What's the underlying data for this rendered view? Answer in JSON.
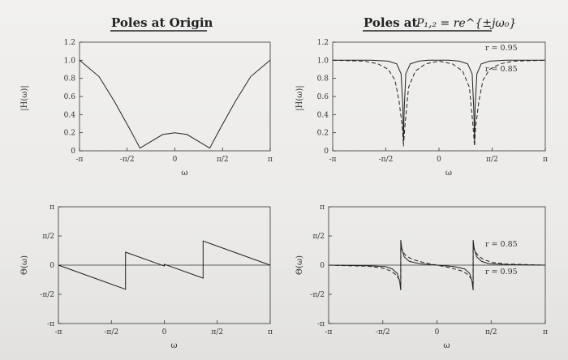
{
  "titles": {
    "left": "Poles at Origin",
    "right_prefix": "Poles at ",
    "right_formula": "P₁,₂ = re^{±jω₀}"
  },
  "chart_data": [
    {
      "type": "line",
      "panel": "magnitude-poles-at-origin",
      "ylabel": "|H(ω)|",
      "xlabel": "ω",
      "xlim": [
        "-π",
        "π"
      ],
      "ylim": [
        0,
        1.2
      ],
      "xticks": [
        "-π",
        "-π/2",
        "0",
        "π/2",
        "π"
      ],
      "yticks": [
        "0",
        "0.2",
        "0.4",
        "0.6",
        "0.8",
        "1.0",
        "1.2"
      ],
      "series": [
        {
          "x": [
            -3.14,
            -2.5,
            -2.0,
            -1.5,
            -1.15,
            -0.8,
            -0.4,
            0,
            0.4,
            0.8,
            1.15,
            1.5,
            2.0,
            2.5,
            3.14
          ],
          "y": [
            1.0,
            0.82,
            0.55,
            0.25,
            0.03,
            0.1,
            0.18,
            0.2,
            0.18,
            0.1,
            0.03,
            0.25,
            0.55,
            0.82,
            1.0
          ]
        }
      ]
    },
    {
      "type": "line",
      "panel": "magnitude-poles-at-re-jw0",
      "ylabel": "|H(ω)|",
      "xlabel": "ω",
      "xlim": [
        "-π",
        "π"
      ],
      "ylim": [
        0,
        1.2
      ],
      "xticks": [
        "-π",
        "-π/2",
        "0",
        "π/2",
        "π"
      ],
      "yticks": [
        "0",
        "0.2",
        "0.4",
        "0.6",
        "0.8",
        "1.0",
        "1.2"
      ],
      "annotations": [
        "r = 0.95",
        "r = 0.85"
      ],
      "series": [
        {
          "dash": false,
          "x": [
            -3.14,
            -2.0,
            -1.5,
            -1.25,
            -1.12,
            -1.07,
            -1.05,
            -1.03,
            -0.98,
            -0.85,
            -0.6,
            -0.3,
            0,
            0.3,
            0.6,
            0.85,
            0.98,
            1.03,
            1.05,
            1.07,
            1.12,
            1.25,
            1.5,
            2.0,
            3.14
          ],
          "y": [
            1.0,
            1.0,
            0.99,
            0.96,
            0.85,
            0.5,
            0.1,
            0.45,
            0.85,
            0.96,
            0.99,
            1.0,
            1.0,
            1.0,
            0.99,
            0.96,
            0.85,
            0.45,
            0.1,
            0.5,
            0.85,
            0.96,
            0.99,
            1.0,
            1.0
          ]
        },
        {
          "dash": true,
          "x": [
            -3.14,
            -2.2,
            -1.8,
            -1.5,
            -1.3,
            -1.18,
            -1.08,
            -1.05,
            -1.0,
            -0.9,
            -0.7,
            -0.4,
            0,
            0.4,
            0.7,
            0.9,
            1.0,
            1.05,
            1.08,
            1.18,
            1.3,
            1.5,
            1.8,
            2.2,
            3.14
          ],
          "y": [
            1.0,
            0.99,
            0.96,
            0.9,
            0.78,
            0.55,
            0.25,
            0.05,
            0.3,
            0.7,
            0.88,
            0.96,
            0.99,
            0.96,
            0.88,
            0.7,
            0.3,
            0.05,
            0.25,
            0.55,
            0.78,
            0.9,
            0.96,
            0.99,
            1.0
          ]
        }
      ]
    },
    {
      "type": "line",
      "panel": "phase-poles-at-origin",
      "ylabel": "Θ(ω)",
      "xlabel": "ω",
      "xlim": [
        "-π",
        "π"
      ],
      "ylim": [
        "-π",
        "π"
      ],
      "xticks": [
        "-π",
        "-π/2",
        "0",
        "π/2",
        "π"
      ],
      "yticks": [
        "-π",
        "-π/2",
        "0",
        "π/2",
        "π"
      ],
      "series": [
        {
          "x": [
            -3.14,
            -1.15,
            -1.15,
            0.0,
            0.0,
            1.15,
            1.15,
            3.14
          ],
          "y": [
            0.0,
            -1.3,
            0.7,
            -0.05,
            0.05,
            -0.7,
            1.3,
            0.0
          ]
        }
      ]
    },
    {
      "type": "line",
      "panel": "phase-poles-at-re-jw0",
      "ylabel": "Θ(ω)",
      "xlabel": "ω",
      "xlim": [
        "-π",
        "π"
      ],
      "ylim": [
        "-π",
        "π"
      ],
      "xticks": [
        "-π",
        "-π/2",
        "0",
        "π/2",
        "π"
      ],
      "yticks": [
        "-π",
        "-π/2",
        "0",
        "π/2",
        "π"
      ],
      "annotations": [
        "r = 0.85",
        "r = 0.95"
      ],
      "series": [
        {
          "dash": false,
          "x": [
            -3.14,
            -2.0,
            -1.5,
            -1.3,
            -1.15,
            -1.08,
            -1.05,
            -1.05,
            -1.02,
            -0.95,
            -0.8,
            -0.5,
            0,
            0.5,
            0.8,
            0.95,
            1.02,
            1.05,
            1.05,
            1.08,
            1.15,
            1.3,
            1.5,
            2.0,
            3.14
          ],
          "y": [
            0.0,
            -0.03,
            -0.08,
            -0.2,
            -0.45,
            -0.9,
            -1.35,
            1.35,
            0.9,
            0.45,
            0.2,
            0.08,
            0.0,
            -0.08,
            -0.2,
            -0.45,
            -0.9,
            -1.35,
            1.35,
            0.9,
            0.45,
            0.2,
            0.08,
            0.03,
            0.0
          ]
        },
        {
          "dash": true,
          "x": [
            -3.14,
            -2.0,
            -1.6,
            -1.35,
            -1.2,
            -1.1,
            -1.05,
            -1.05,
            -1.0,
            -0.9,
            -0.7,
            -0.4,
            0,
            0.4,
            0.7,
            0.9,
            1.0,
            1.05,
            1.05,
            1.1,
            1.2,
            1.35,
            1.6,
            2.0,
            3.14
          ],
          "y": [
            0.0,
            -0.06,
            -0.15,
            -0.3,
            -0.5,
            -0.75,
            -1.0,
            1.0,
            0.75,
            0.5,
            0.3,
            0.15,
            0.0,
            -0.15,
            -0.3,
            -0.5,
            -0.75,
            -1.0,
            1.0,
            0.75,
            0.5,
            0.3,
            0.15,
            0.06,
            0.0
          ]
        }
      ]
    }
  ]
}
